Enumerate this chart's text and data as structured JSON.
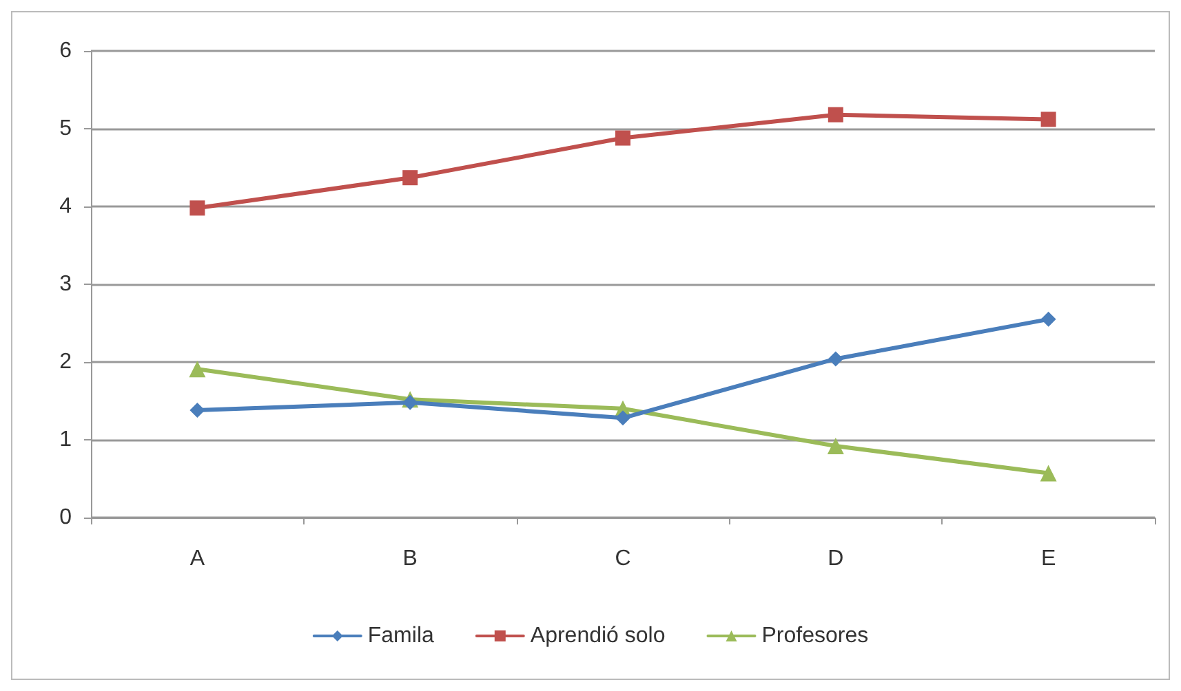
{
  "chart_data": {
    "type": "line",
    "categories": [
      "A",
      "B",
      "C",
      "D",
      "E"
    ],
    "series": [
      {
        "name": "Famila",
        "color": "#4a7ebb",
        "marker": "diamond",
        "values": [
          1.38,
          1.48,
          1.28,
          2.04,
          2.55
        ]
      },
      {
        "name": "Aprendió solo",
        "color": "#c0504d",
        "marker": "square",
        "values": [
          3.98,
          4.37,
          4.88,
          5.18,
          5.12
        ]
      },
      {
        "name": "Profesores",
        "color": "#9bbb59",
        "marker": "triangle",
        "values": [
          1.91,
          1.52,
          1.4,
          0.92,
          0.57
        ]
      }
    ],
    "ylim": [
      0,
      6
    ],
    "yticks": [
      0,
      1,
      2,
      3,
      4,
      5,
      6
    ],
    "grid": "y",
    "legend": "bottom"
  }
}
